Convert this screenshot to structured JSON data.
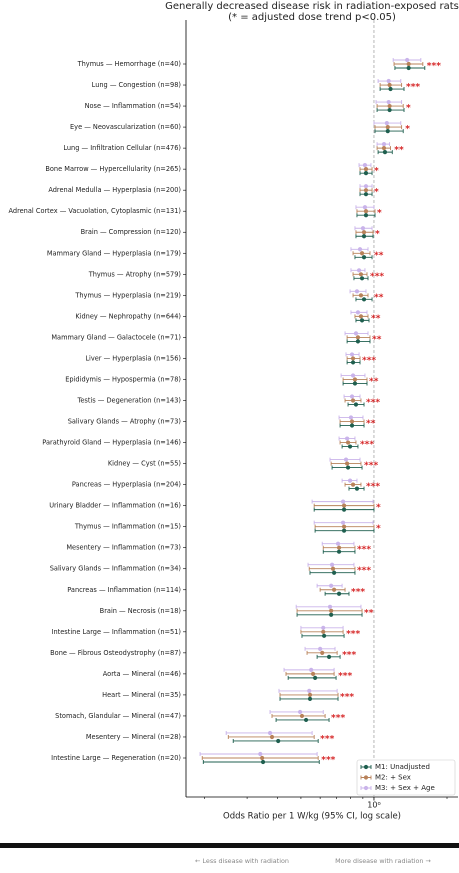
{
  "chart_data": {
    "type": "forest",
    "title": "Generally decreased disease risk in radiation-exposed rats",
    "subtitle": "(* = adjusted dose trend p<0.05)",
    "xlabel": "Odds Ratio per 1 W/kg (95% CI, log scale)",
    "xscale": "log",
    "xlim": [
      0.168,
      2.22
    ],
    "xticks": [
      {
        "value": 1,
        "label": "10⁰"
      }
    ],
    "xminor_ticks": [
      0.2,
      0.3,
      0.4,
      0.5,
      0.6,
      0.7,
      0.8,
      0.9,
      2
    ],
    "reference_line": 1,
    "legend": "lower right",
    "categories": [
      "Thymus — Hemorrhage  (n=40)",
      "Lung — Congestion  (n=98)",
      "Nose — Inflammation  (n=54)",
      "Eye — Neovascularization  (n=60)",
      "Lung — Infiltration Cellular  (n=476)",
      "Bone Marrow — Hypercellularity  (n=265)",
      "Adrenal Medulla — Hyperplasia  (n=200)",
      "Adrenal Cortex — Vacuolation, Cytoplasmic  (n=131)",
      "Brain — Compression  (n=120)",
      "Mammary Gland — Hyperplasia  (n=179)",
      "Thymus — Atrophy  (n=579)",
      "Thymus — Hyperplasia  (n=219)",
      "Kidney — Nephropathy  (n=644)",
      "Mammary Gland — Galactocele  (n=71)",
      "Liver — Hyperplasia  (n=156)",
      "Epididymis — Hypospermia  (n=78)",
      "Testis — Degeneration  (n=143)",
      "Salivary Glands — Atrophy  (n=73)",
      "Parathyroid Gland — Hyperplasia  (n=146)",
      "Kidney — Cyst  (n=55)",
      "Pancreas — Hyperplasia  (n=204)",
      "Urinary Bladder — Inflammation  (n=16)",
      "Thymus — Inflammation  (n=15)",
      "Mesentery — Inflammation  (n=73)",
      "Salivary Glands — Inflammation  (n=34)",
      "Pancreas — Inflammation  (n=114)",
      "Brain — Necrosis  (n=18)",
      "Intestine Large — Inflammation  (n=51)",
      "Bone — Fibrous Osteodystrophy  (n=87)",
      "Aorta — Mineral  (n=46)",
      "Heart — Mineral  (n=35)",
      "Stomach, Glandular — Mineral  (n=47)",
      "Mesentery — Mineral  (n=28)",
      "Intestine Large — Regeneration  (n=20)"
    ],
    "significance": [
      "***",
      "***",
      "*",
      "*",
      "**",
      "*",
      "*",
      "*",
      "*",
      "**",
      "***",
      "**",
      "**",
      "**",
      "***",
      "**",
      "***",
      "**",
      "***",
      "***",
      "***",
      "*",
      "*",
      "***",
      "***",
      "***",
      "**",
      "***",
      "***",
      "***",
      "***",
      "***",
      "***",
      "***"
    ],
    "series": [
      {
        "name": "M1: Unadjusted",
        "color": "#1f5f4f",
        "values": [
          1.39,
          1.17,
          1.16,
          1.14,
          1.11,
          0.927,
          0.927,
          0.927,
          0.91,
          0.91,
          0.893,
          0.91,
          0.893,
          0.859,
          0.82,
          0.835,
          0.843,
          0.812,
          0.797,
          0.782,
          0.851,
          0.753,
          0.753,
          0.718,
          0.685,
          0.718,
          0.666,
          0.623,
          0.653,
          0.572,
          0.545,
          0.525,
          0.403,
          0.349
        ],
        "lower": [
          1.22,
          1.06,
          1.03,
          1.01,
          1.04,
          0.876,
          0.876,
          0.851,
          0.843,
          0.835,
          0.827,
          0.843,
          0.843,
          0.775,
          0.775,
          0.746,
          0.782,
          0.725,
          0.739,
          0.672,
          0.789,
          0.567,
          0.572,
          0.618,
          0.545,
          0.629,
          0.482,
          0.505,
          0.583,
          0.443,
          0.41,
          0.395,
          0.263,
          0.198
        ],
        "upper": [
          1.62,
          1.33,
          1.33,
          1.32,
          1.19,
          0.982,
          0.982,
          1.01,
          0.991,
          0.982,
          0.945,
          0.982,
          0.954,
          0.963,
          0.876,
          0.936,
          0.91,
          0.91,
          0.859,
          0.893,
          0.91,
          1.0,
          1.0,
          0.835,
          0.835,
          0.789,
          0.893,
          0.753,
          0.725,
          0.698,
          0.711,
          0.653,
          0.589,
          0.595
        ]
      },
      {
        "name": "M2: + Sex",
        "color": "#b8825a",
        "values": [
          1.39,
          1.16,
          1.16,
          1.14,
          1.1,
          0.927,
          0.927,
          0.927,
          0.91,
          0.893,
          0.884,
          0.884,
          0.884,
          0.859,
          0.82,
          0.835,
          0.82,
          0.812,
          0.782,
          0.775,
          0.82,
          0.753,
          0.753,
          0.718,
          0.678,
          0.685,
          0.666,
          0.618,
          0.612,
          0.561,
          0.545,
          0.505,
          0.38,
          0.346
        ],
        "lower": [
          1.21,
          1.06,
          1.03,
          1.01,
          1.03,
          0.876,
          0.876,
          0.851,
          0.843,
          0.82,
          0.82,
          0.82,
          0.835,
          0.775,
          0.775,
          0.746,
          0.76,
          0.725,
          0.725,
          0.666,
          0.76,
          0.567,
          0.572,
          0.618,
          0.541,
          0.6,
          0.482,
          0.5,
          0.53,
          0.434,
          0.41,
          0.38,
          0.251,
          0.196
        ],
        "upper": [
          1.59,
          1.3,
          1.32,
          1.3,
          1.17,
          0.982,
          0.982,
          1.01,
          0.991,
          0.963,
          0.936,
          0.945,
          0.945,
          0.963,
          0.876,
          0.936,
          0.884,
          0.91,
          0.843,
          0.884,
          0.884,
          1.0,
          1.0,
          0.835,
          0.835,
          0.76,
          0.893,
          0.746,
          0.705,
          0.685,
          0.711,
          0.629,
          0.567,
          0.589
        ]
      },
      {
        "name": "M3: + Sex + Age",
        "color": "#c9b3ea",
        "values": [
          1.37,
          1.15,
          1.15,
          1.13,
          1.1,
          0.918,
          0.927,
          0.918,
          0.901,
          0.876,
          0.868,
          0.851,
          0.859,
          0.843,
          0.812,
          0.82,
          0.812,
          0.804,
          0.775,
          0.767,
          0.797,
          0.746,
          0.746,
          0.711,
          0.672,
          0.666,
          0.659,
          0.618,
          0.6,
          0.551,
          0.541,
          0.496,
          0.373,
          0.34
        ],
        "lower": [
          1.2,
          1.04,
          1.02,
          1.0,
          1.03,
          0.868,
          0.876,
          0.843,
          0.835,
          0.804,
          0.804,
          0.797,
          0.804,
          0.76,
          0.767,
          0.732,
          0.753,
          0.718,
          0.718,
          0.659,
          0.739,
          0.556,
          0.567,
          0.612,
          0.535,
          0.583,
          0.478,
          0.5,
          0.52,
          0.426,
          0.406,
          0.373,
          0.246,
          0.192
        ],
        "upper": [
          1.56,
          1.29,
          1.3,
          1.29,
          1.16,
          0.972,
          0.982,
          1.0,
          0.982,
          0.945,
          0.918,
          0.927,
          0.936,
          0.945,
          0.868,
          0.918,
          0.876,
          0.901,
          0.835,
          0.876,
          0.851,
          0.991,
          0.991,
          0.827,
          0.827,
          0.739,
          0.884,
          0.746,
          0.691,
          0.685,
          0.705,
          0.618,
          0.556,
          0.583
        ]
      }
    ],
    "annotations": [
      "← Less disease with radiation",
      "More disease with radiation →"
    ]
  }
}
